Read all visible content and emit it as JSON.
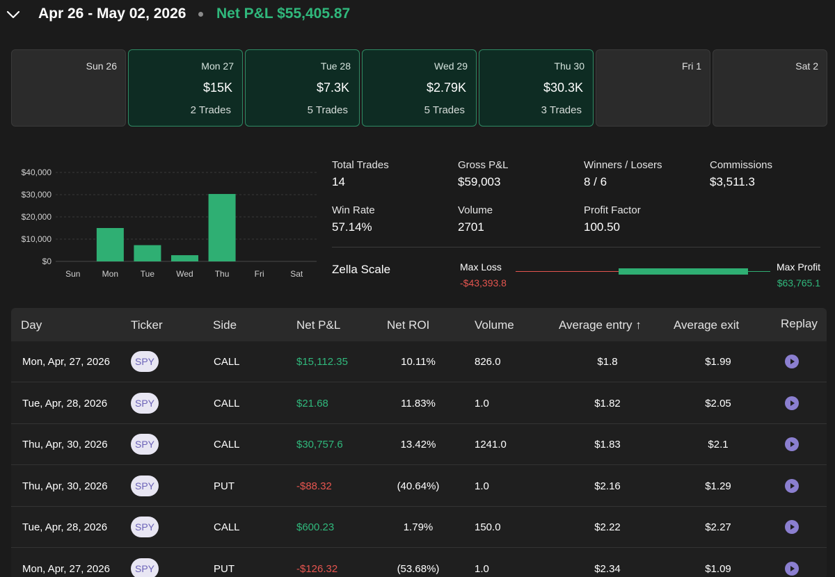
{
  "header": {
    "range": "Apr 26 - May 02, 2026",
    "net_pl_label": "Net P&L $55,405.87"
  },
  "days": [
    {
      "name": "Sun 26",
      "value": "",
      "trades": "",
      "active": false
    },
    {
      "name": "Mon 27",
      "value": "$15K",
      "trades": "2 Trades",
      "active": true
    },
    {
      "name": "Tue 28",
      "value": "$7.3K",
      "trades": "5 Trades",
      "active": true
    },
    {
      "name": "Wed 29",
      "value": "$2.79K",
      "trades": "5 Trades",
      "active": true
    },
    {
      "name": "Thu 30",
      "value": "$30.3K",
      "trades": "3 Trades",
      "active": true
    },
    {
      "name": "Fri 1",
      "value": "",
      "trades": "",
      "active": false
    },
    {
      "name": "Sat 2",
      "value": "",
      "trades": "",
      "active": false
    }
  ],
  "chart_data": {
    "type": "bar",
    "categories": [
      "Sun",
      "Mon",
      "Tue",
      "Wed",
      "Thu",
      "Fri",
      "Sat"
    ],
    "values": [
      0,
      15000,
      7300,
      2790,
      30300,
      0,
      0
    ],
    "ylim": [
      0,
      40000
    ],
    "yticks": [
      "$0",
      "$10,000",
      "$20,000",
      "$30,000",
      "$40,000"
    ],
    "ytick_values": [
      0,
      10000,
      20000,
      30000,
      40000
    ],
    "grid": true,
    "bar_color": "#2faf73"
  },
  "stats": {
    "total_trades": {
      "label": "Total Trades",
      "value": "14"
    },
    "gross_pl": {
      "label": "Gross P&L",
      "value": "$59,003"
    },
    "winners_losers": {
      "label": "Winners / Losers",
      "value": "8 / 6"
    },
    "commissions": {
      "label": "Commissions",
      "value": "$3,511.3"
    },
    "win_rate": {
      "label": "Win Rate",
      "value": "57.14%"
    },
    "volume": {
      "label": "Volume",
      "value": "2701"
    },
    "profit_factor": {
      "label": "Profit Factor",
      "value": "100.50"
    }
  },
  "zella_scale": {
    "label": "Zella Scale",
    "max_loss_label": "Max Loss",
    "max_loss_value": "-$43,393.8",
    "max_profit_label": "Max Profit",
    "max_profit_value": "$63,765.1"
  },
  "table": {
    "headers": {
      "day": "Day",
      "ticker": "Ticker",
      "side": "Side",
      "net_pl": "Net P&L",
      "net_roi": "Net ROI",
      "volume": "Volume",
      "avg_entry": "Average entry ↑",
      "avg_exit": "Average exit",
      "replay": "Replay"
    },
    "rows": [
      {
        "day": "Mon, Apr, 27, 2026",
        "ticker": "SPY",
        "side": "CALL",
        "net_pl": "$15,112.35",
        "pl_sign": "pos",
        "net_roi": "10.11%",
        "volume": "826.0",
        "avg_entry": "$1.8",
        "avg_exit": "$1.99"
      },
      {
        "day": "Tue, Apr, 28, 2026",
        "ticker": "SPY",
        "side": "CALL",
        "net_pl": "$21.68",
        "pl_sign": "pos",
        "net_roi": "11.83%",
        "volume": "1.0",
        "avg_entry": "$1.82",
        "avg_exit": "$2.05"
      },
      {
        "day": "Thu, Apr, 30, 2026",
        "ticker": "SPY",
        "side": "CALL",
        "net_pl": "$30,757.6",
        "pl_sign": "pos",
        "net_roi": "13.42%",
        "volume": "1241.0",
        "avg_entry": "$1.83",
        "avg_exit": "$2.1"
      },
      {
        "day": "Thu, Apr, 30, 2026",
        "ticker": "SPY",
        "side": "PUT",
        "net_pl": "-$88.32",
        "pl_sign": "neg",
        "net_roi": "(40.64%)",
        "volume": "1.0",
        "avg_entry": "$2.16",
        "avg_exit": "$1.29"
      },
      {
        "day": "Tue, Apr, 28, 2026",
        "ticker": "SPY",
        "side": "CALL",
        "net_pl": "$600.23",
        "pl_sign": "pos",
        "net_roi": "1.79%",
        "volume": "150.0",
        "avg_entry": "$2.22",
        "avg_exit": "$2.27"
      },
      {
        "day": "Mon, Apr, 27, 2026",
        "ticker": "SPY",
        "side": "PUT",
        "net_pl": "-$126.32",
        "pl_sign": "neg",
        "net_roi": "(53.68%)",
        "volume": "1.0",
        "avg_entry": "$2.34",
        "avg_exit": "$1.09"
      }
    ]
  },
  "colors": {
    "accent_green": "#30b87c",
    "loss_red": "#e5554f",
    "card_active_bg": "#0e2c23",
    "ticker_pill_bg": "#e8e6f3",
    "replay_icon": "#8b7fd0"
  }
}
